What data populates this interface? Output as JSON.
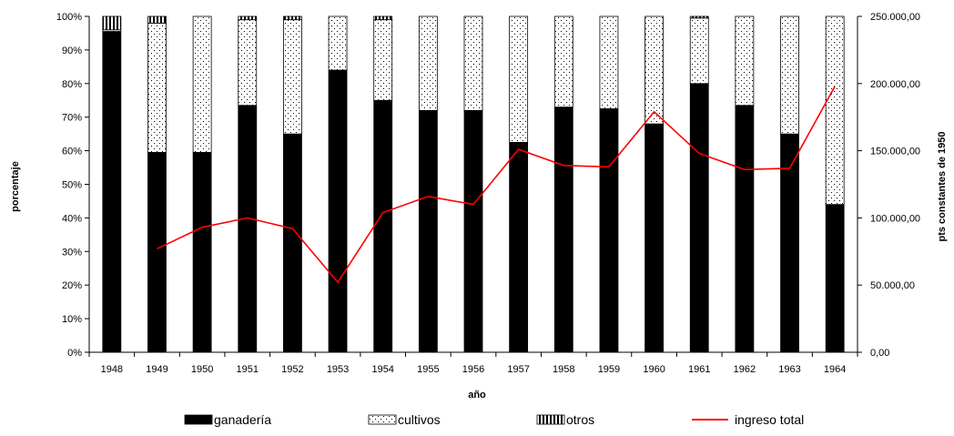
{
  "chart_data": {
    "type": "bar",
    "stacked": true,
    "combo": "bar+line",
    "categories": [
      "1948",
      "1949",
      "1950",
      "1951",
      "1952",
      "1953",
      "1954",
      "1955",
      "1956",
      "1957",
      "1958",
      "1959",
      "1960",
      "1961",
      "1962",
      "1963",
      "1964"
    ],
    "xlabel": "año",
    "ylabel": "porcentaje",
    "ylabel_right": "pts constantes de 1950",
    "ylim": [
      0,
      100
    ],
    "ylim_right": [
      0,
      250000
    ],
    "yticks": [
      "0%",
      "10%",
      "20%",
      "30%",
      "40%",
      "50%",
      "60%",
      "70%",
      "80%",
      "90%",
      "100%"
    ],
    "yticks_right": [
      "0,00",
      "50.000,00",
      "100.000,00",
      "150.000,00",
      "200.000,00",
      "250.000,00"
    ],
    "series": [
      {
        "name": "ganadería",
        "axis": "left",
        "kind": "bar",
        "pattern": "solid",
        "color": "#000000",
        "values": [
          95.5,
          59.5,
          59.5,
          73.5,
          65,
          84,
          75,
          72,
          72,
          62.5,
          73,
          72.5,
          68,
          80,
          73.5,
          65,
          44
        ]
      },
      {
        "name": "cultivos",
        "axis": "left",
        "kind": "bar",
        "pattern": "dotted",
        "color": "#000000",
        "values": [
          0.5,
          38.5,
          40.5,
          25.5,
          34,
          16,
          24,
          28,
          28,
          37.5,
          27,
          27.5,
          32,
          19.5,
          26.5,
          35,
          56
        ]
      },
      {
        "name": "otros",
        "axis": "left",
        "kind": "bar",
        "pattern": "vertical-stripes",
        "color": "#000000",
        "values": [
          4,
          2,
          0,
          1,
          1,
          0,
          1,
          0,
          0,
          0,
          0,
          0,
          0,
          0.5,
          0,
          0,
          0
        ]
      },
      {
        "name": "ingreso total",
        "axis": "right",
        "kind": "line",
        "color": "#ff0000",
        "values": [
          null,
          77000,
          93000,
          100000,
          92000,
          52000,
          104000,
          116000,
          110000,
          151000,
          139000,
          138000,
          179000,
          148000,
          136000,
          137000,
          198000
        ]
      }
    ],
    "legend_position": "bottom"
  }
}
